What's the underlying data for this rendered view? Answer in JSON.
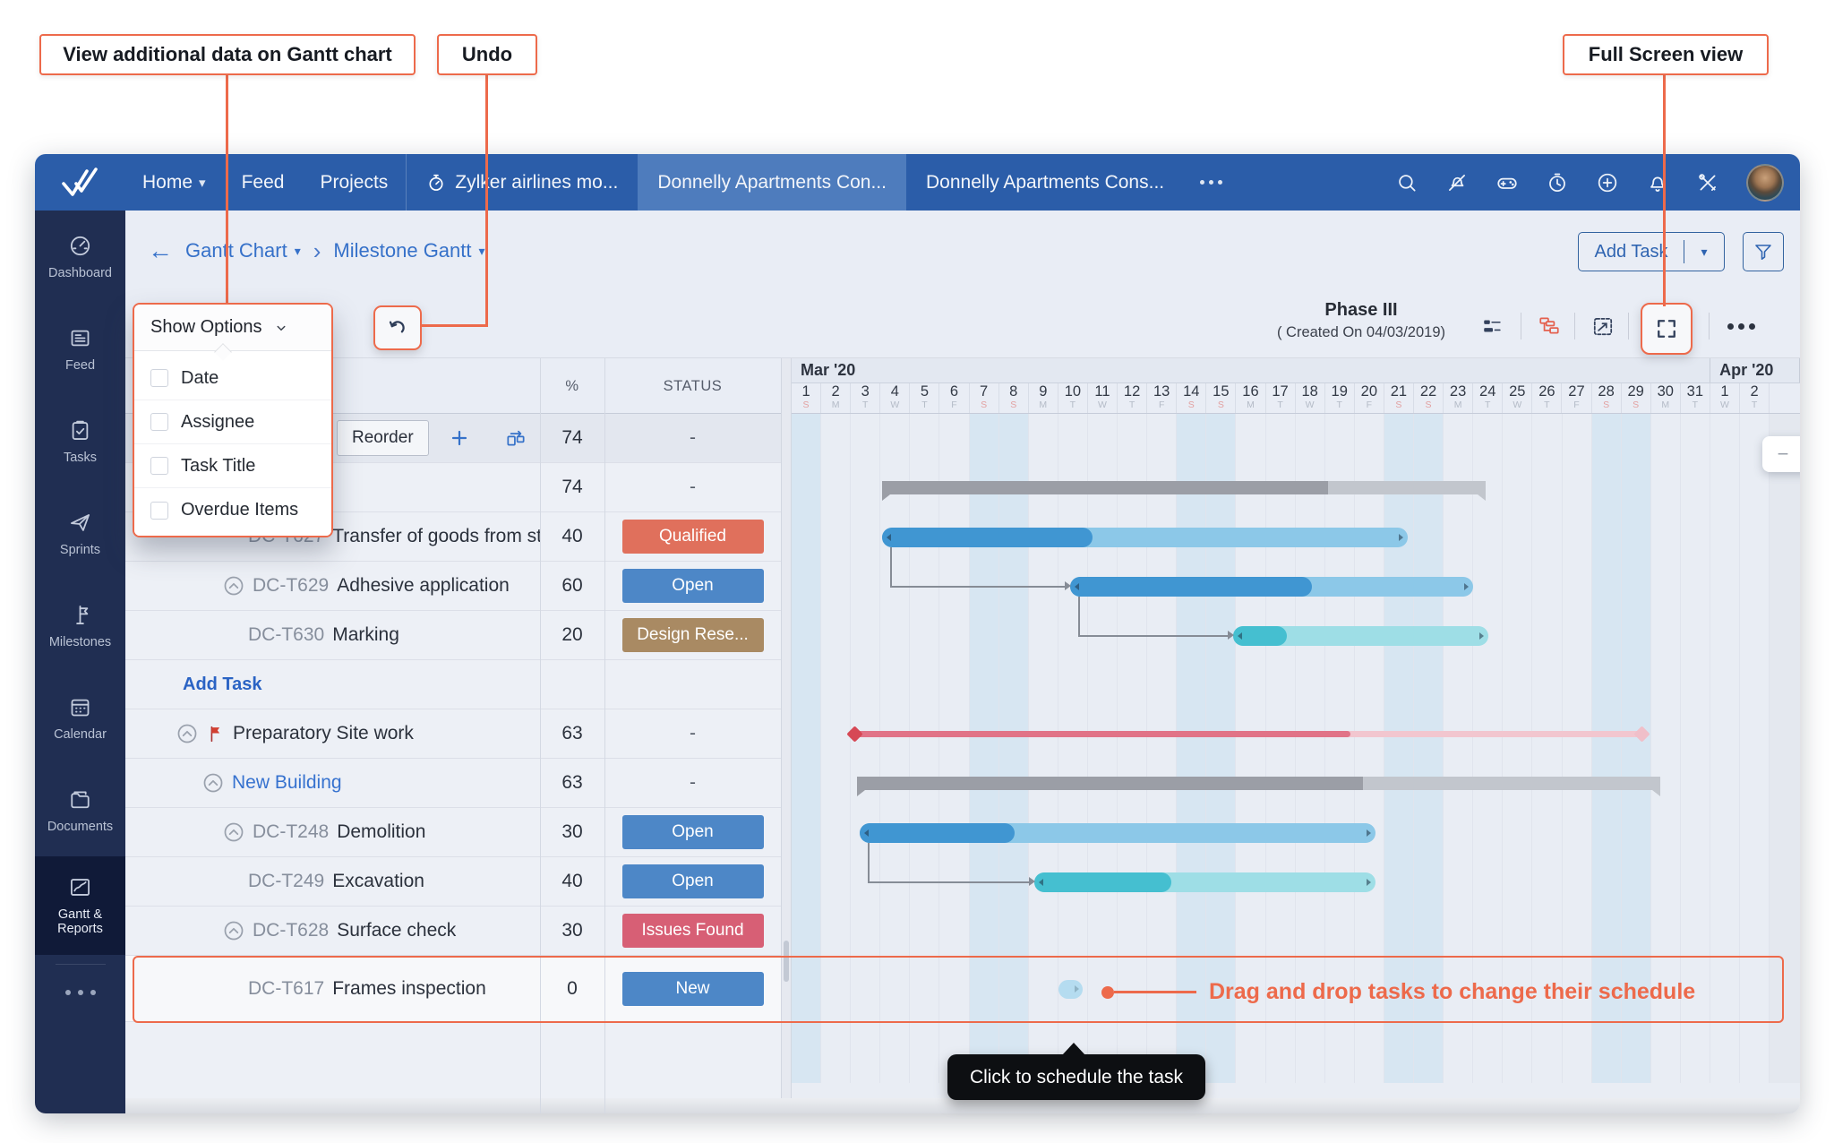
{
  "annotations": {
    "view_additional": "View additional data on Gantt chart",
    "undo": "Undo",
    "fullscreen": "Full Screen view",
    "drag_hint": "Drag and drop tasks to change their schedule",
    "click_hint": "Click to schedule the task"
  },
  "topnav": {
    "menu": [
      "Home",
      "Feed",
      "Projects"
    ],
    "timer_tab": "Zylker airlines mo...",
    "tab_active": "Donnelly Apartments Con...",
    "tab_second": "Donnelly Apartments Cons...",
    "icons": [
      "search-icon",
      "zia-assistant-icon",
      "games-icon",
      "timer-icon",
      "add-new-icon",
      "notifications-bell-icon",
      "setup-tools-icon"
    ]
  },
  "sidebar": {
    "items": [
      {
        "label": "Dashboard",
        "icon": "dashboard-icon"
      },
      {
        "label": "Feed",
        "icon": "feed-icon"
      },
      {
        "label": "Tasks",
        "icon": "tasks-icon"
      },
      {
        "label": "Sprints",
        "icon": "sprints-icon"
      },
      {
        "label": "Milestones",
        "icon": "milestones-icon"
      },
      {
        "label": "Calendar",
        "icon": "calendar-icon"
      },
      {
        "label": "Documents",
        "icon": "documents-icon"
      },
      {
        "label": "Gantt & Reports",
        "icon": "gantt-reports-icon",
        "active": true
      }
    ]
  },
  "breadcrumb": {
    "level1": "Gantt Chart",
    "level2": "Milestone Gantt"
  },
  "header_actions": {
    "add_task": "Add Task"
  },
  "show_options": {
    "title": "Show Options",
    "items": [
      "Date",
      "Assignee",
      "Task Title",
      "Overdue Items"
    ]
  },
  "toolbar": {
    "phase_title": "Phase III",
    "phase_subtitle": "( Created On 04/03/2019)"
  },
  "table": {
    "col_pct": "%",
    "col_status": "STATUS",
    "reorder_label": "Reorder",
    "add_task_label": "Add Task",
    "rows": [
      {
        "kind": "toolbar",
        "pct": "74",
        "status_text": "-"
      },
      {
        "kind": "task",
        "level": 0,
        "id": "",
        "name": "",
        "pct": "74",
        "status_text": "-"
      },
      {
        "kind": "task",
        "level": 3,
        "id": "DC-T627",
        "name": "Transfer of goods from stor...",
        "pct": "40",
        "badge": "Qualified",
        "badge_color": "qualified"
      },
      {
        "kind": "task",
        "level": 2,
        "collapse": true,
        "id": "DC-T629",
        "name": "Adhesive application",
        "pct": "60",
        "badge": "Open",
        "badge_color": "open"
      },
      {
        "kind": "task",
        "level": 3,
        "id": "DC-T630",
        "name": "Marking",
        "pct": "20",
        "badge": "Design Rese...",
        "badge_color": "design"
      },
      {
        "kind": "addtask"
      },
      {
        "kind": "task",
        "level": 0,
        "collapse": true,
        "flag": true,
        "id": "",
        "name": "Preparatory Site work",
        "pct": "63",
        "status_text": "-"
      },
      {
        "kind": "task",
        "level": 1,
        "collapse": true,
        "id": "",
        "name": "New Building",
        "name_blue": true,
        "pct": "63",
        "status_text": "-"
      },
      {
        "kind": "task",
        "level": 2,
        "collapse": true,
        "id": "DC-T248",
        "name": "Demolition",
        "pct": "30",
        "badge": "Open",
        "badge_color": "open"
      },
      {
        "kind": "task",
        "level": 3,
        "id": "DC-T249",
        "name": "Excavation",
        "pct": "40",
        "badge": "Open",
        "badge_color": "open"
      },
      {
        "kind": "task",
        "level": 2,
        "collapse": true,
        "id": "DC-T628",
        "name": "Surface check",
        "pct": "30",
        "badge": "Issues Found",
        "badge_color": "issues"
      },
      {
        "kind": "task",
        "level": 3,
        "id": "DC-T617",
        "name": "Frames inspection",
        "pct": "0",
        "badge": "New",
        "badge_color": "new",
        "highlight": true
      }
    ]
  },
  "timeline": {
    "months": [
      {
        "label": "Mar '20",
        "letters": [
          "S",
          "M",
          "T",
          "W",
          "T",
          "F",
          "S",
          "S",
          "M",
          "T",
          "W",
          "T",
          "F",
          "S",
          "S",
          "M",
          "T",
          "W",
          "T",
          "F",
          "S",
          "S",
          "M",
          "T",
          "W",
          "T",
          "F",
          "S",
          "S",
          "M",
          "T"
        ]
      },
      {
        "label": "Apr '20",
        "letters": [
          "W",
          "T"
        ]
      }
    ]
  },
  "gantt": {
    "bars": [
      {
        "task": "group-summary",
        "row": 1,
        "kind": "summary",
        "start": 4.05,
        "end": 24.4,
        "progress": 0.74
      },
      {
        "task": "DC-T627",
        "row": 2,
        "kind": "blue",
        "start": 4.05,
        "end": 21.8,
        "progress": 0.4
      },
      {
        "task": "DC-T629",
        "row": 3,
        "kind": "blue",
        "start": 10.4,
        "end": 24.0,
        "progress": 0.6
      },
      {
        "task": "DC-T630",
        "row": 4,
        "kind": "teal",
        "start": 15.9,
        "end": 24.5,
        "progress": 0.21
      },
      {
        "task": "Preparatory Site work",
        "row": 6,
        "kind": "milestone",
        "start": 3.1,
        "end": 29.7,
        "progress": 0.63
      },
      {
        "task": "New Building",
        "row": 7,
        "kind": "summary",
        "start": 3.2,
        "end": 30.3,
        "progress": 0.63
      },
      {
        "task": "DC-T248",
        "row": 8,
        "kind": "blue",
        "start": 3.3,
        "end": 20.7,
        "progress": 0.3
      },
      {
        "task": "DC-T249",
        "row": 9,
        "kind": "teal",
        "start": 9.2,
        "end": 20.7,
        "progress": 0.4
      },
      {
        "task": "DC-T617",
        "row": 11,
        "kind": "bubble",
        "start": 10.0,
        "end": 10.8,
        "progress": 0
      }
    ],
    "dependencies": [
      {
        "from": 1,
        "to": 2
      },
      {
        "from": 2,
        "to": 3
      },
      {
        "from": 6,
        "to": 7
      }
    ]
  },
  "colors": {
    "annotation": "#ed6a4b",
    "badges": {
      "qualified": "#e0705c",
      "open": "#4d87c7",
      "design": "#a98a63",
      "issues": "#d75f75",
      "new": "#4d87c7"
    },
    "bar_blue_done": "#4096d2",
    "bar_blue_rest": "#8cc8e8",
    "bar_teal_done": "#45bfd0",
    "bar_teal_rest": "#9edee6",
    "bar_gray_done": "#9b9ea6",
    "bar_gray_rest": "#c2c6cd",
    "bar_red_done": "#e17387",
    "bar_red_rest": "#f2c6cf",
    "diamond_done": "#d64855",
    "diamond_rest": "#f0bfc9"
  }
}
